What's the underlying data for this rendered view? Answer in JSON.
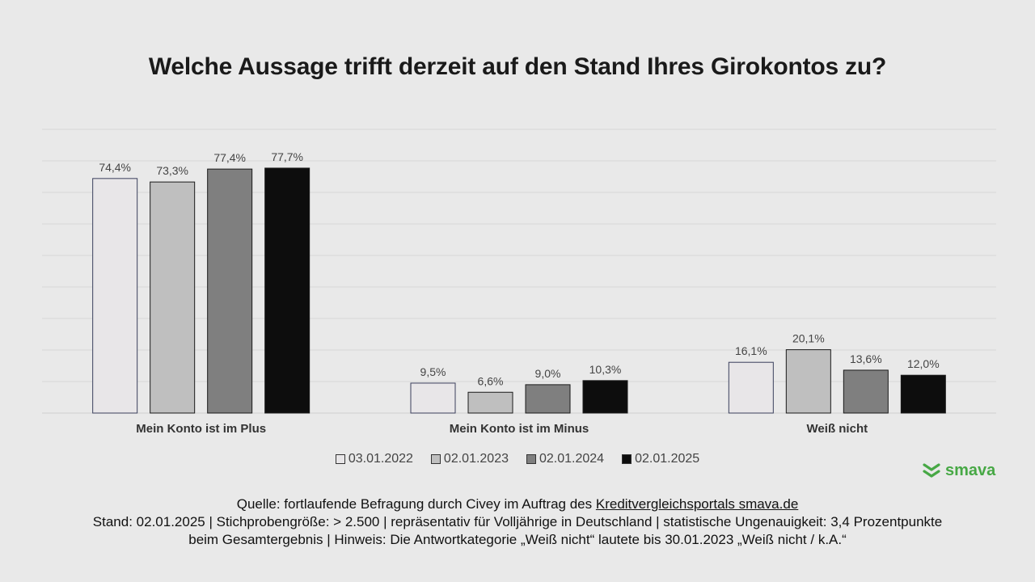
{
  "title": "Welche Aussage trifft derzeit auf den Stand Ihres Girokontos zu?",
  "chart_data": {
    "type": "bar",
    "categories": [
      "Mein Konto ist im Plus",
      "Mein Konto ist im Minus",
      "Weiß nicht"
    ],
    "series": [
      {
        "name": "03.01.2022",
        "values": [
          74.4,
          9.5,
          16.1
        ],
        "labels": [
          "74,4%",
          "9,5%",
          "16,1%"
        ],
        "color": "#e8e6e8"
      },
      {
        "name": "02.01.2023",
        "values": [
          73.3,
          6.6,
          20.1
        ],
        "labels": [
          "73,3%",
          "6,6%",
          "20,1%"
        ],
        "color": "#bfbfbf"
      },
      {
        "name": "02.01.2024",
        "values": [
          77.4,
          9.0,
          13.6
        ],
        "labels": [
          "77,4%",
          "9,0%",
          "13,6%"
        ],
        "color": "#7f7f7f"
      },
      {
        "name": "02.01.2025",
        "values": [
          77.7,
          10.3,
          12.0
        ],
        "labels": [
          "77,7%",
          "10,3%",
          "12,0%"
        ],
        "color": "#0d0d0d"
      }
    ],
    "ylim": [
      0,
      90
    ],
    "grid": true,
    "legend": "bottom"
  },
  "logo": {
    "text": "smava",
    "color": "#47a845"
  },
  "footer": {
    "line1_prefix": "Quelle: fortlaufende Befragung durch Civey im Auftrag des ",
    "line1_link": "Kreditvergleichsportals smava.de",
    "line2": "Stand: 02.01.2025 | Stichprobengröße: > 2.500 | repräsentativ für Volljährige in Deutschland | statistische Ungenauigkeit: 3,4 Prozentpunkte",
    "line3": "beim Gesamtergebnis | Hinweis: Die Antwortkategorie „Weiß nicht“ lautete bis 30.01.2023 „Weiß nicht / k.A.“"
  }
}
